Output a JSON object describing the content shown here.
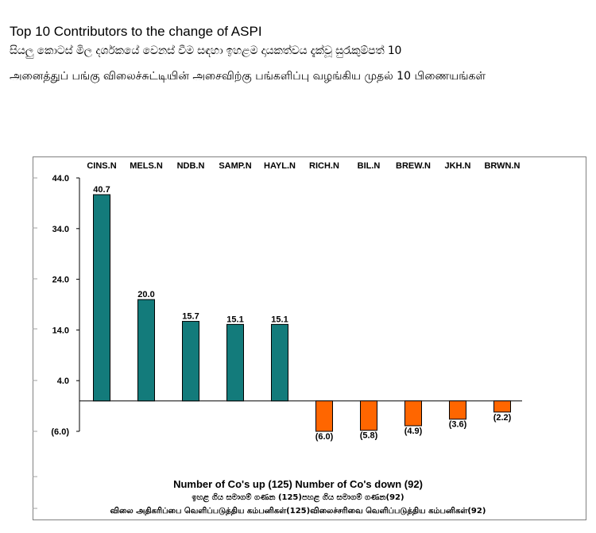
{
  "header": {
    "title_en": "Top 10 Contributors to the change of ASPI",
    "title_si": "සියලු කොටස් මිල දර්ශකයේ වෙනස් වීම සඳහා ඉහළම දායකත්වය දැක්වූ සුරැකුම්පත් 10",
    "title_ta": "அனைத்துப் பங்கு விலைச்சுட்டியின் அசைவிற்கு பங்களிப்பு வழங்கிய முதல் 10 பிணையங்கள்"
  },
  "chart_data": {
    "type": "bar",
    "title": "Top 10 Contributors to the change of ASPI",
    "categories": [
      "CINS.N",
      "MELS.N",
      "NDB.N",
      "SAMP.N",
      "HAYL.N",
      "RICH.N",
      "BIL.N",
      "BREW.N",
      "JKH.N",
      "BRWN.N"
    ],
    "values": [
      40.7,
      20.0,
      15.7,
      15.1,
      15.1,
      -6.0,
      -5.8,
      -4.9,
      -3.6,
      -2.2
    ],
    "data_labels": [
      "40.7",
      "20.0",
      "15.7",
      "15.1",
      "15.1",
      "(6.0)",
      "(5.8)",
      "(4.9)",
      "(3.6)",
      "(2.2)"
    ],
    "y_ticks": [
      -6.0,
      4.0,
      14.0,
      24.0,
      34.0,
      44.0
    ],
    "y_tick_labels": [
      "(6.0)",
      "4.0",
      "14.0",
      "24.0",
      "34.0",
      "44.0"
    ],
    "ylim": [
      -6.0,
      44.0
    ],
    "category_position": "top",
    "colors": {
      "positive": "#137b7b",
      "negative": "#ff6600"
    },
    "xlabel": "",
    "ylabel": ""
  },
  "footer": {
    "summary_en": "Number of Co's up (125) Number of Co's down  (92)",
    "summary_si": "ඉහළ ගිය සමාගම් ගණන (125)පහළ ගිය සමාගම් ගණන(92)",
    "summary_ta": "விலை அதிகரிப்பை வெளிப்படுத்திய கம்பனிகள்(125)விலைச்சரிவை வெளிப்படுத்திய கம்பனிகள்(92)"
  }
}
